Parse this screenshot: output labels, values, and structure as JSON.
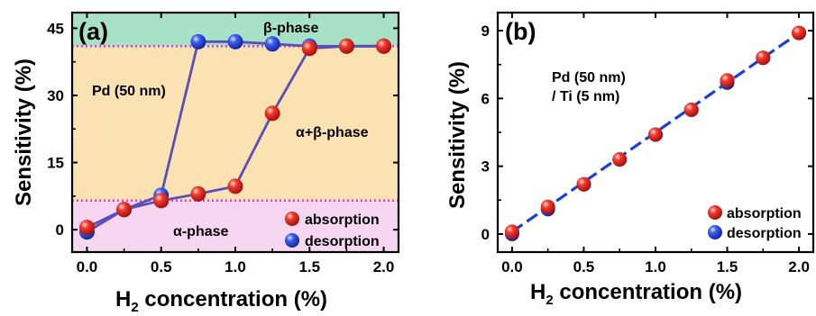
{
  "figure": {
    "colors": {
      "absorption": "#e8231c",
      "desorption": "#2d4fd8",
      "alpha_band": "#f7d6f2",
      "alpha_beta_band": "#fbe2b2",
      "beta_band": "#a8e2c6",
      "threshold_line": "#e23ad6",
      "connector_a": "#5a4fb6",
      "fit_b": "#1a3fd6"
    }
  },
  "chart_data": [
    {
      "type": "scatter",
      "panel_label": "(a)",
      "xlabel": "H2 concentration (%)",
      "ylabel": "Sensitivity (%)",
      "xlim": [
        -0.1,
        2.1
      ],
      "ylim": [
        -5,
        48.5
      ],
      "xticks": [
        "0.0",
        "0.5",
        "1.0",
        "1.5",
        "2.0"
      ],
      "yticks": [
        "0",
        "15",
        "30",
        "45"
      ],
      "grid": false,
      "legend_position": "bottom-right",
      "regions": [
        {
          "label": "α-phase",
          "y_from": -5,
          "y_to": 6.5
        },
        {
          "label": "α+β-phase",
          "y_from": 6.5,
          "y_to": 41
        },
        {
          "label": "β-phase",
          "y_from": 41,
          "y_to": 48.5
        }
      ],
      "threshold_lines": [
        6.5,
        41
      ],
      "annotations": [
        "Pd (50 nm)",
        "β-phase",
        "α+β-phase",
        "α-phase"
      ],
      "series": [
        {
          "name": "absorption",
          "x": [
            0,
            0.25,
            0.5,
            0.75,
            1.0,
            1.25,
            1.5,
            1.75,
            2.0
          ],
          "y": [
            0.5,
            4.5,
            6.5,
            8,
            9.7,
            26,
            40.5,
            41,
            41
          ]
        },
        {
          "name": "desorption",
          "x": [
            0,
            0.25,
            0.5,
            0.75,
            1.0,
            1.25,
            1.5,
            1.75,
            2.0
          ],
          "y": [
            -0.5,
            4.5,
            7.7,
            42,
            42,
            41.5,
            41,
            41,
            41
          ]
        }
      ]
    },
    {
      "type": "scatter",
      "panel_label": "(b)",
      "xlabel": "H2 concentration (%)",
      "ylabel": "Sensitivity (%)",
      "xlim": [
        -0.1,
        2.1
      ],
      "ylim": [
        -0.8,
        9.8
      ],
      "xticks": [
        "0.0",
        "0.5",
        "1.0",
        "1.5",
        "2.0"
      ],
      "yticks": [
        "0",
        "3",
        "6",
        "9"
      ],
      "grid": false,
      "legend_position": "bottom-right",
      "annotations": [
        "Pd (50 nm)",
        "/ Ti (5 nm)"
      ],
      "series": [
        {
          "name": "absorption",
          "x": [
            0,
            0.25,
            0.5,
            0.75,
            1.0,
            1.25,
            1.5,
            1.75,
            2.0
          ],
          "y": [
            0.1,
            1.2,
            2.2,
            3.3,
            4.4,
            5.5,
            6.8,
            7.8,
            8.9
          ]
        },
        {
          "name": "desorption",
          "x": [
            0,
            0.25,
            0.5,
            0.75,
            1.0,
            1.25,
            1.5,
            1.75,
            2.0
          ],
          "y": [
            0.0,
            1.1,
            2.2,
            3.3,
            4.4,
            5.5,
            6.7,
            7.8,
            8.9
          ]
        }
      ]
    }
  ]
}
